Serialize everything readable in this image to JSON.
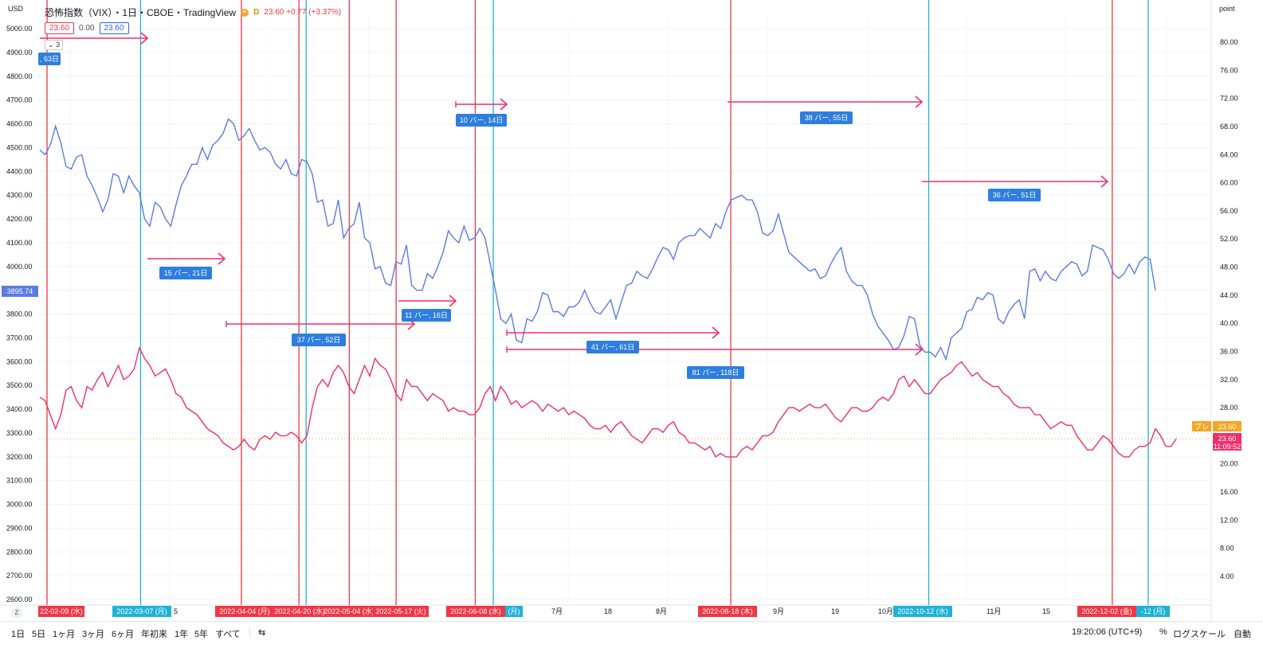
{
  "header": {
    "title": "恐怖指数（VIX）・1日・CBOE・TradingView",
    "price_change": "23.60 +0.77 (+3.37%)",
    "interval_badge": "D",
    "value_red": "23.60",
    "value_zero": "0.00",
    "value_blue": "23.60",
    "collapse_label": "3",
    "left_currency": "USD",
    "right_unit": "point"
  },
  "colors": {
    "blue_series": "#5b7be0",
    "red_series": "#ef2f6b",
    "red_vline": "#f23645",
    "cyan_vline": "#1fb2d6",
    "arrow": "#ef2f6b",
    "tag_blue": "#2e7ee0"
  },
  "bottom": {
    "ranges": [
      "1日",
      "5日",
      "1ヶ月",
      "3ヶ月",
      "6ヶ月",
      "年初来",
      "1年",
      "5年",
      "すべて"
    ],
    "time": "19:20:06 (UTC+9)",
    "percent": "%",
    "log": "ログスケール",
    "auto": "自動"
  },
  "chart_data": {
    "type": "line",
    "left_axis": {
      "label": "USD",
      "range": [
        2600,
        5000
      ],
      "ticks": [
        "5000.00",
        "4900.00",
        "4800.00",
        "4700.00",
        "4600.00",
        "4500.00",
        "4400.00",
        "4300.00",
        "4200.00",
        "4100.00",
        "4000.00",
        "3900.00",
        "3800.00",
        "3700.00",
        "3600.00",
        "3500.00",
        "3400.00",
        "3300.00",
        "3200.00",
        "3100.00",
        "3000.00",
        "2900.00",
        "2800.00",
        "2700.00",
        "2600.00"
      ],
      "current_price": "3895.74",
      "current_value": 3895.74
    },
    "right_axis": {
      "label": "point",
      "range": [
        0,
        84
      ],
      "ticks": [
        "80.00",
        "76.00",
        "72.00",
        "68.00",
        "64.00",
        "60.00",
        "56.00",
        "52.00",
        "48.00",
        "44.00",
        "40.00",
        "36.00",
        "32.00",
        "28.00",
        "24.00",
        "20.00",
        "16.00",
        "12.00",
        "8.00",
        "4.00"
      ],
      "current_price": "23.60",
      "current_time": "11:09:52",
      "pre_label": "プレ",
      "current_value": 23.6
    },
    "x_labels": [
      "22-02-09 (水)",
      "2022-03-07 (月)",
      "5",
      "2022-04-04 (月)",
      "2022-04-20 (水)",
      "2022-05-04 (水)",
      "2022-05-17 (火)",
      "2022-06-08 (水)",
      "(月)",
      "7月",
      "18",
      "8月",
      "2022-08-18 (木)",
      "9月",
      "19",
      "10月",
      "2022-10-12 (水)",
      "11月",
      "15",
      "2022-12-02 (金)",
      "-12 (月)"
    ],
    "blue_series": [
      4490,
      4470,
      4510,
      4590,
      4520,
      4420,
      4410,
      4460,
      4470,
      4380,
      4340,
      4290,
      4230,
      4280,
      4390,
      4380,
      4310,
      4380,
      4340,
      4310,
      4200,
      4170,
      4270,
      4250,
      4200,
      4170,
      4260,
      4340,
      4380,
      4430,
      4430,
      4500,
      4450,
      4510,
      4530,
      4560,
      4620,
      4600,
      4530,
      4550,
      4580,
      4530,
      4490,
      4500,
      4480,
      4430,
      4410,
      4450,
      4390,
      4380,
      4450,
      4440,
      4390,
      4270,
      4280,
      4170,
      4180,
      4280,
      4120,
      4160,
      4180,
      4270,
      4120,
      4100,
      3990,
      4000,
      3930,
      3920,
      4020,
      4010,
      4090,
      3920,
      3900,
      3900,
      3970,
      3950,
      4000,
      4060,
      4150,
      4120,
      4100,
      4170,
      4110,
      4120,
      4160,
      4120,
      4010,
      3900,
      3780,
      3760,
      3800,
      3690,
      3680,
      3780,
      3770,
      3810,
      3890,
      3880,
      3810,
      3810,
      3790,
      3830,
      3830,
      3850,
      3900,
      3850,
      3810,
      3800,
      3830,
      3860,
      3780,
      3850,
      3920,
      3930,
      3980,
      3960,
      3950,
      3990,
      4040,
      4080,
      4070,
      4030,
      4100,
      4120,
      4130,
      4130,
      4160,
      4140,
      4120,
      4180,
      4160,
      4230,
      4280,
      4290,
      4300,
      4280,
      4280,
      4230,
      4140,
      4130,
      4150,
      4220,
      4140,
      4060,
      4040,
      4020,
      4000,
      3980,
      3990,
      3950,
      3960,
      4010,
      4050,
      4080,
      3980,
      3940,
      3920,
      3920,
      3880,
      3800,
      3750,
      3720,
      3690,
      3650,
      3660,
      3710,
      3790,
      3780,
      3670,
      3640,
      3640,
      3620,
      3660,
      3610,
      3700,
      3720,
      3740,
      3810,
      3820,
      3870,
      3860,
      3890,
      3880,
      3780,
      3760,
      3810,
      3840,
      3860,
      3780,
      3980,
      3990,
      3940,
      3980,
      3950,
      3940,
      3980,
      4000,
      4020,
      4010,
      3960,
      3980,
      4090,
      4080,
      4070,
      4030,
      3970,
      3950,
      3970,
      4010,
      3970,
      4020,
      4040,
      4030,
      3900
    ],
    "red_series": [
      29.5,
      29,
      27,
      25,
      27,
      30.5,
      31,
      29,
      28,
      31,
      30.5,
      32,
      33,
      31,
      32.5,
      34,
      32,
      32.5,
      33.5,
      36.5,
      35,
      34,
      32.5,
      33,
      33.5,
      32,
      30,
      29.5,
      28,
      27.5,
      27,
      26,
      25,
      24.5,
      24,
      23,
      22.5,
      22,
      22.5,
      23.5,
      22.5,
      22,
      23.5,
      24,
      23.5,
      24.5,
      24,
      24,
      24.5,
      24,
      23,
      24,
      28,
      31,
      32,
      31,
      33,
      34,
      33,
      31,
      30,
      32,
      34,
      32.5,
      35,
      34,
      33.5,
      32,
      30,
      29,
      32,
      31,
      31,
      30,
      29,
      30,
      29.5,
      29,
      27.5,
      28,
      27.5,
      27.5,
      27,
      27,
      28,
      30,
      31,
      29,
      31,
      30,
      28.5,
      29,
      28,
      28.5,
      29,
      28.5,
      27.5,
      28.5,
      28,
      27.5,
      28,
      27,
      27.5,
      27,
      26.5,
      25.5,
      25,
      25,
      25.5,
      24.5,
      25.5,
      26,
      25,
      24,
      23.5,
      23,
      24,
      25,
      25,
      24.5,
      25.5,
      26,
      24.5,
      24,
      23,
      23,
      22.5,
      22,
      22.5,
      21,
      21.5,
      21,
      21,
      21,
      22,
      22.5,
      22,
      23,
      24,
      24,
      24.5,
      26,
      27,
      28,
      28,
      27.5,
      28,
      28.5,
      28,
      28,
      28.5,
      27.5,
      26.5,
      26,
      27,
      28,
      28,
      27.5,
      27.5,
      28,
      29,
      29.5,
      29,
      30,
      32,
      32.5,
      31,
      32,
      31,
      30,
      30,
      31,
      32,
      32.5,
      33,
      34,
      34.5,
      33.5,
      32.5,
      33,
      32,
      31.5,
      31,
      31,
      30,
      29.5,
      28.5,
      28,
      28,
      28,
      27,
      27,
      26,
      25,
      25.5,
      26,
      25.5,
      25.5,
      24,
      23,
      22,
      22,
      23,
      24,
      23.5,
      22.5,
      21.5,
      21,
      21,
      22,
      22.5,
      22.5,
      23,
      25,
      24,
      22.5,
      22.5,
      23.6
    ],
    "red_vlines_x": [
      "2022-02-09",
      "2022-04-04",
      "2022-04-20",
      "2022-05-04",
      "2022-05-17",
      "2022-06-08",
      "2022-08-18",
      "2022-12-02"
    ],
    "cyan_vlines_x": [
      "2022-03-07",
      "2022-04-22",
      "2022-06-13",
      "2022-10-12",
      "2022-12-12"
    ],
    "measurements": [
      {
        "label": ", 63日"
      },
      {
        "label": "15 バー, 21日"
      },
      {
        "label": "37 バー, 52日"
      },
      {
        "label": "11 バー, 16日"
      },
      {
        "label": "10 バー, 14日"
      },
      {
        "label": "41 バー, 61日"
      },
      {
        "label": "81 バー, 118日"
      },
      {
        "label": "38 バー, 55日"
      },
      {
        "label": "36 バー, 51日"
      }
    ]
  }
}
